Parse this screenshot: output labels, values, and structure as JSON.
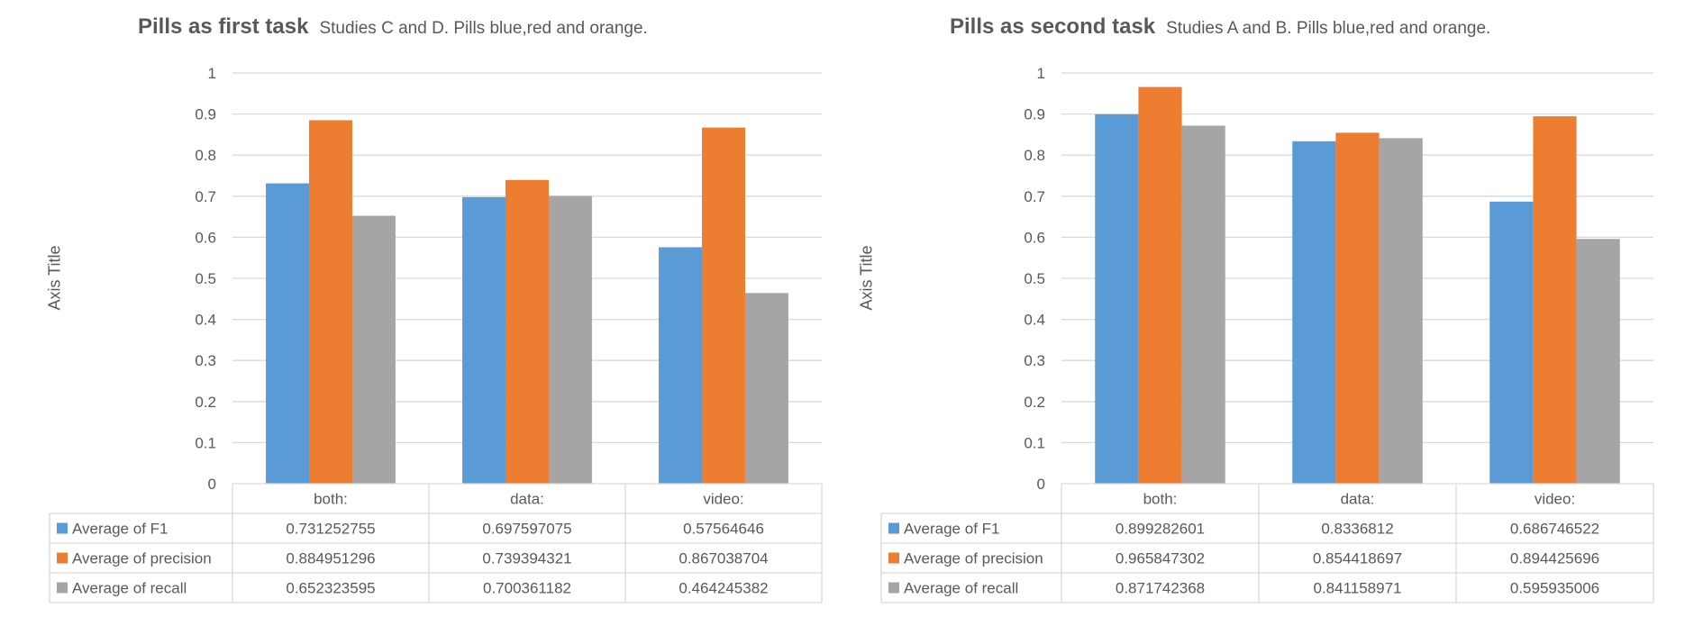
{
  "chart_data": [
    {
      "type": "bar",
      "title": "Pills as first task",
      "subtitle": "Studies C and D.  Pills blue,red and orange.",
      "ylabel": "Axis Title",
      "xlabel": "",
      "ylim": [
        0,
        1
      ],
      "yticks": [
        "0",
        "0.1",
        "0.2",
        "0.3",
        "0.4",
        "0.5",
        "0.6",
        "0.7",
        "0.8",
        "0.9",
        "1"
      ],
      "categories": [
        "both:",
        "data:",
        "video:"
      ],
      "grid": true,
      "legend": "data-table",
      "series": [
        {
          "name": "Average of F1",
          "color": "#5b9bd5",
          "values": [
            0.731252755,
            0.697597075,
            0.57564646
          ],
          "labels": [
            "0.731252755",
            "0.697597075",
            "0.57564646"
          ]
        },
        {
          "name": "Average of precision",
          "color": "#ed7d31",
          "values": [
            0.884951296,
            0.739394321,
            0.867038704
          ],
          "labels": [
            "0.884951296",
            "0.739394321",
            "0.867038704"
          ]
        },
        {
          "name": "Average of recall",
          "color": "#a5a5a5",
          "values": [
            0.652323595,
            0.700361182,
            0.464245382
          ],
          "labels": [
            "0.652323595",
            "0.700361182",
            "0.464245382"
          ]
        }
      ]
    },
    {
      "type": "bar",
      "title": "Pills as second task",
      "subtitle": "Studies A and B.  Pills blue,red and orange.",
      "ylabel": "Axis Title",
      "xlabel": "",
      "ylim": [
        0,
        1
      ],
      "yticks": [
        "0",
        "0.1",
        "0.2",
        "0.3",
        "0.4",
        "0.5",
        "0.6",
        "0.7",
        "0.8",
        "0.9",
        "1"
      ],
      "categories": [
        "both:",
        "data:",
        "video:"
      ],
      "grid": true,
      "legend": "data-table",
      "series": [
        {
          "name": "Average of F1",
          "color": "#5b9bd5",
          "values": [
            0.899282601,
            0.8336812,
            0.686746522
          ],
          "labels": [
            "0.899282601",
            "0.8336812",
            "0.686746522"
          ]
        },
        {
          "name": "Average of precision",
          "color": "#ed7d31",
          "values": [
            0.965847302,
            0.854418697,
            0.894425696
          ],
          "labels": [
            "0.965847302",
            "0.854418697",
            "0.894425696"
          ]
        },
        {
          "name": "Average of recall",
          "color": "#a5a5a5",
          "values": [
            0.871742368,
            0.841158971,
            0.595935006
          ],
          "labels": [
            "0.871742368",
            "0.841158971",
            "0.595935006"
          ]
        }
      ]
    }
  ]
}
